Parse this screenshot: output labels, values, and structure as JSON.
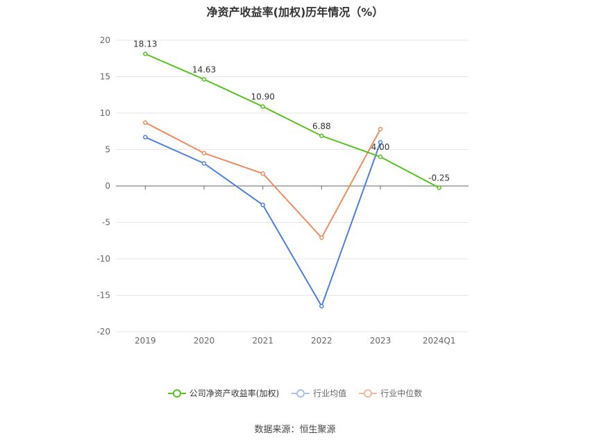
{
  "chart_data": {
    "type": "line",
    "title": "净资产收益率(加权)历年情况（%）",
    "categories": [
      "2019",
      "2020",
      "2021",
      "2022",
      "2023",
      "2024Q1"
    ],
    "ylim": [
      -20,
      20
    ],
    "yticks": [
      20,
      15,
      10,
      5,
      0,
      -5,
      -10,
      -15,
      -20
    ],
    "grid": true,
    "legend_position": "bottom",
    "series": [
      {
        "name": "公司净资产收益率(加权)",
        "color": "#52c41a",
        "values": [
          18.13,
          14.63,
          10.9,
          6.88,
          4.0,
          -0.25
        ],
        "labels": [
          "18.13",
          "14.63",
          "10.90",
          "6.88",
          "4.00",
          "-0.25"
        ]
      },
      {
        "name": "行业均值",
        "color": "#4a7fe0",
        "values": [
          6.7,
          3.1,
          -2.6,
          -16.5,
          6.0,
          null
        ]
      },
      {
        "name": "行业中位数",
        "color": "#f08a5d",
        "values": [
          8.7,
          4.5,
          1.7,
          -7.1,
          7.8,
          null
        ]
      }
    ]
  },
  "source": "数据来源：恒生聚源"
}
